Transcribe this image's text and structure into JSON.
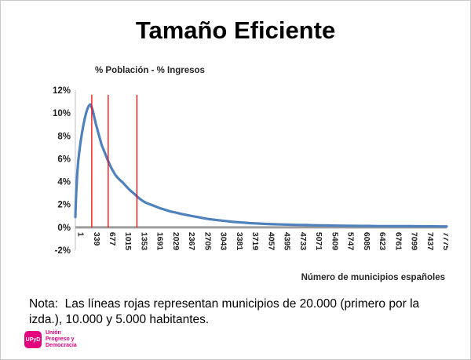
{
  "slide": {
    "title": "Tamaño Eficiente",
    "chart_label": "% Población - % Ingresos",
    "x_axis_title": "Número de municipios españoles",
    "note": "Nota:  Las líneas rojas representan municipios de 20.000 (primero por la izda.), 10.000 y 5.000 habitantes.",
    "logo": {
      "mark": "UPyD",
      "color": "#E5007D",
      "lines": [
        "Unión",
        "Progreso y",
        "Democracia"
      ]
    }
  },
  "chart_data": {
    "type": "line",
    "title": "% Población - % Ingresos",
    "xlabel": "Número de municipios españoles",
    "ylabel": "",
    "grid": false,
    "legend": "none",
    "ylim": [
      -2,
      12
    ],
    "xlim": [
      1,
      7900
    ],
    "y_ticks": [
      12,
      10,
      8,
      6,
      4,
      2,
      0,
      -2
    ],
    "y_tick_suffix": "%",
    "x_tick_labels": [
      1,
      339,
      677,
      1015,
      1353,
      1691,
      2029,
      2367,
      2705,
      3043,
      3381,
      3719,
      4057,
      4395,
      4733,
      5071,
      5409,
      5747,
      6085,
      6423,
      6761,
      7099,
      7437,
      7775
    ],
    "series": [
      {
        "name": "% Población - % Ingresos",
        "color": "#4F81BD",
        "width": 3.2,
        "points": [
          [
            1,
            0.9
          ],
          [
            8,
            1.8
          ],
          [
            20,
            3.0
          ],
          [
            40,
            4.6
          ],
          [
            60,
            5.7
          ],
          [
            85,
            6.6
          ],
          [
            110,
            7.4
          ],
          [
            140,
            8.2
          ],
          [
            170,
            8.9
          ],
          [
            200,
            9.5
          ],
          [
            230,
            10.0
          ],
          [
            260,
            10.4
          ],
          [
            290,
            10.65
          ],
          [
            315,
            10.75
          ],
          [
            340,
            10.6
          ],
          [
            370,
            10.25
          ],
          [
            400,
            9.7
          ],
          [
            440,
            9.0
          ],
          [
            480,
            8.4
          ],
          [
            520,
            7.8
          ],
          [
            560,
            7.2
          ],
          [
            600,
            6.8
          ],
          [
            640,
            6.4
          ],
          [
            677,
            6.0
          ],
          [
            720,
            5.6
          ],
          [
            760,
            5.25
          ],
          [
            800,
            4.95
          ],
          [
            850,
            4.6
          ],
          [
            900,
            4.35
          ],
          [
            960,
            4.1
          ],
          [
            1015,
            3.9
          ],
          [
            1080,
            3.6
          ],
          [
            1150,
            3.3
          ],
          [
            1220,
            3.05
          ],
          [
            1290,
            2.8
          ],
          [
            1353,
            2.55
          ],
          [
            1420,
            2.35
          ],
          [
            1500,
            2.15
          ],
          [
            1600,
            2.0
          ],
          [
            1691,
            1.85
          ],
          [
            1800,
            1.68
          ],
          [
            1920,
            1.52
          ],
          [
            2029,
            1.38
          ],
          [
            2150,
            1.28
          ],
          [
            2250,
            1.18
          ],
          [
            2367,
            1.08
          ],
          [
            2500,
            0.97
          ],
          [
            2600,
            0.9
          ],
          [
            2705,
            0.82
          ],
          [
            2850,
            0.72
          ],
          [
            3043,
            0.62
          ],
          [
            3200,
            0.55
          ],
          [
            3381,
            0.47
          ],
          [
            3550,
            0.42
          ],
          [
            3719,
            0.37
          ],
          [
            3900,
            0.33
          ],
          [
            4057,
            0.3
          ],
          [
            4220,
            0.27
          ],
          [
            4395,
            0.25
          ],
          [
            4560,
            0.23
          ],
          [
            4733,
            0.21
          ],
          [
            4900,
            0.2
          ],
          [
            5071,
            0.18
          ],
          [
            5240,
            0.17
          ],
          [
            5409,
            0.16
          ],
          [
            5580,
            0.15
          ],
          [
            5747,
            0.14
          ],
          [
            5920,
            0.13
          ],
          [
            6085,
            0.12
          ],
          [
            6250,
            0.12
          ],
          [
            6423,
            0.11
          ],
          [
            6600,
            0.11
          ],
          [
            6761,
            0.1
          ],
          [
            6930,
            0.1
          ],
          [
            7099,
            0.1
          ],
          [
            7270,
            0.09
          ],
          [
            7437,
            0.09
          ],
          [
            7600,
            0.09
          ],
          [
            7775,
            0.08
          ],
          [
            7900,
            0.08
          ]
        ]
      }
    ],
    "red_lines": {
      "color": "#FF0000",
      "x_positions": [
        350,
        700,
        1310
      ],
      "y_top": 11.6,
      "meaning": [
        "20.000 habitantes (primero por la izda.)",
        "10.000 habitantes",
        "5.000 habitantes"
      ]
    },
    "axis_colors": {
      "zero_axis": "#9C9C9C",
      "y_axis": "#C0C0C0"
    }
  }
}
